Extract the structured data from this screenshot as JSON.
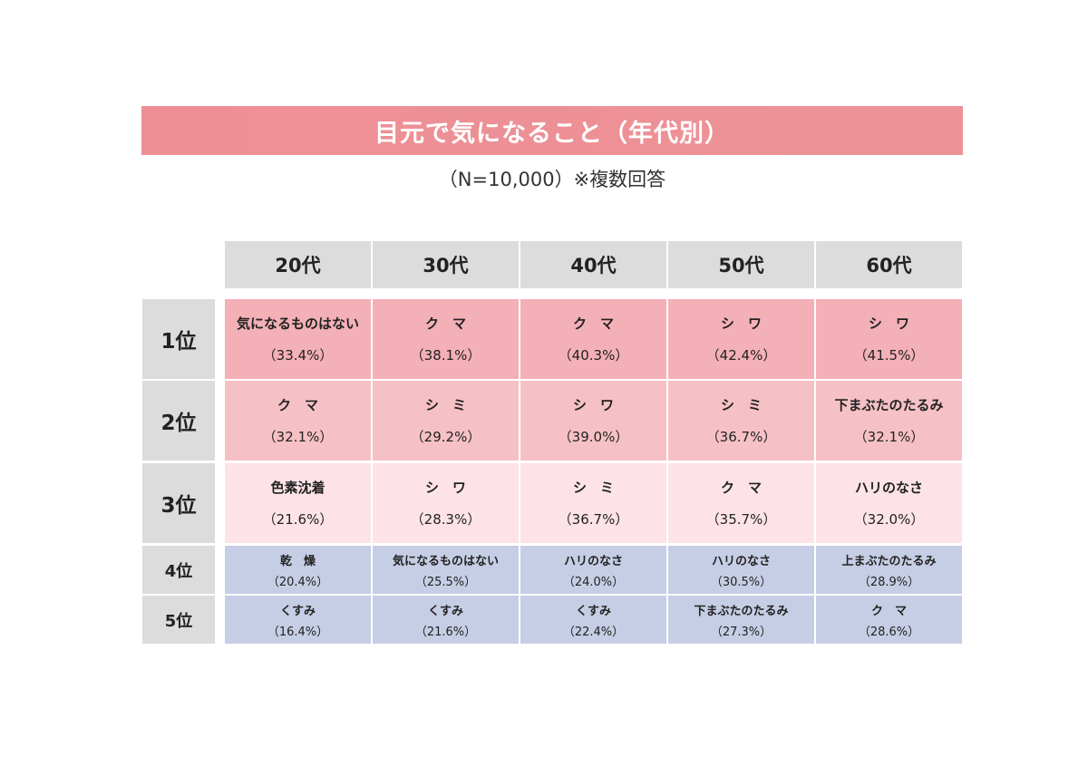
{
  "title": "目元で気になること（年代別）",
  "subtitle": "（N=10,000）※複数回答",
  "table": {
    "columns": [
      "20代",
      "30代",
      "40代",
      "50代",
      "60代"
    ],
    "rows": [
      {
        "rank": "1位",
        "cells": [
          {
            "item": "気になるものはない",
            "share": "（33.4%）"
          },
          {
            "item": "ク　マ",
            "share": "（38.1%）"
          },
          {
            "item": "ク　マ",
            "share": "（40.3%）"
          },
          {
            "item": "シ　ワ",
            "share": "（42.4%）"
          },
          {
            "item": "シ　ワ",
            "share": "（41.5%）"
          }
        ]
      },
      {
        "rank": "2位",
        "cells": [
          {
            "item": "ク　マ",
            "share": "（32.1%）"
          },
          {
            "item": "シ　ミ",
            "share": "（29.2%）"
          },
          {
            "item": "シ　ワ",
            "share": "（39.0%）"
          },
          {
            "item": "シ　ミ",
            "share": "（36.7%）"
          },
          {
            "item": "下まぶたのたるみ",
            "share": "（32.1%）"
          }
        ]
      },
      {
        "rank": "3位",
        "cells": [
          {
            "item": "色素沈着",
            "share": "（21.6%）"
          },
          {
            "item": "シ　ワ",
            "share": "（28.3%）"
          },
          {
            "item": "シ　ミ",
            "share": "（36.7%）"
          },
          {
            "item": "ク　マ",
            "share": "（35.7%）"
          },
          {
            "item": "ハリのなさ",
            "share": "（32.0%）"
          }
        ]
      },
      {
        "rank": "4位",
        "cells": [
          {
            "item": "乾　燥",
            "share": "（20.4%）"
          },
          {
            "item": "気になるものはない",
            "share": "（25.5%）"
          },
          {
            "item": "ハリのなさ",
            "share": "（24.0%）"
          },
          {
            "item": "ハリのなさ",
            "share": "（30.5%）"
          },
          {
            "item": "上まぶたのたるみ",
            "share": "（28.9%）"
          }
        ]
      },
      {
        "rank": "5位",
        "cells": [
          {
            "item": "くすみ",
            "share": "（16.4%）"
          },
          {
            "item": "くすみ",
            "share": "（21.6%）"
          },
          {
            "item": "くすみ",
            "share": "（22.4%）"
          },
          {
            "item": "下まぶたのたるみ",
            "share": "（27.3%）"
          },
          {
            "item": "ク　マ",
            "share": "（28.6%）"
          }
        ]
      }
    ]
  }
}
